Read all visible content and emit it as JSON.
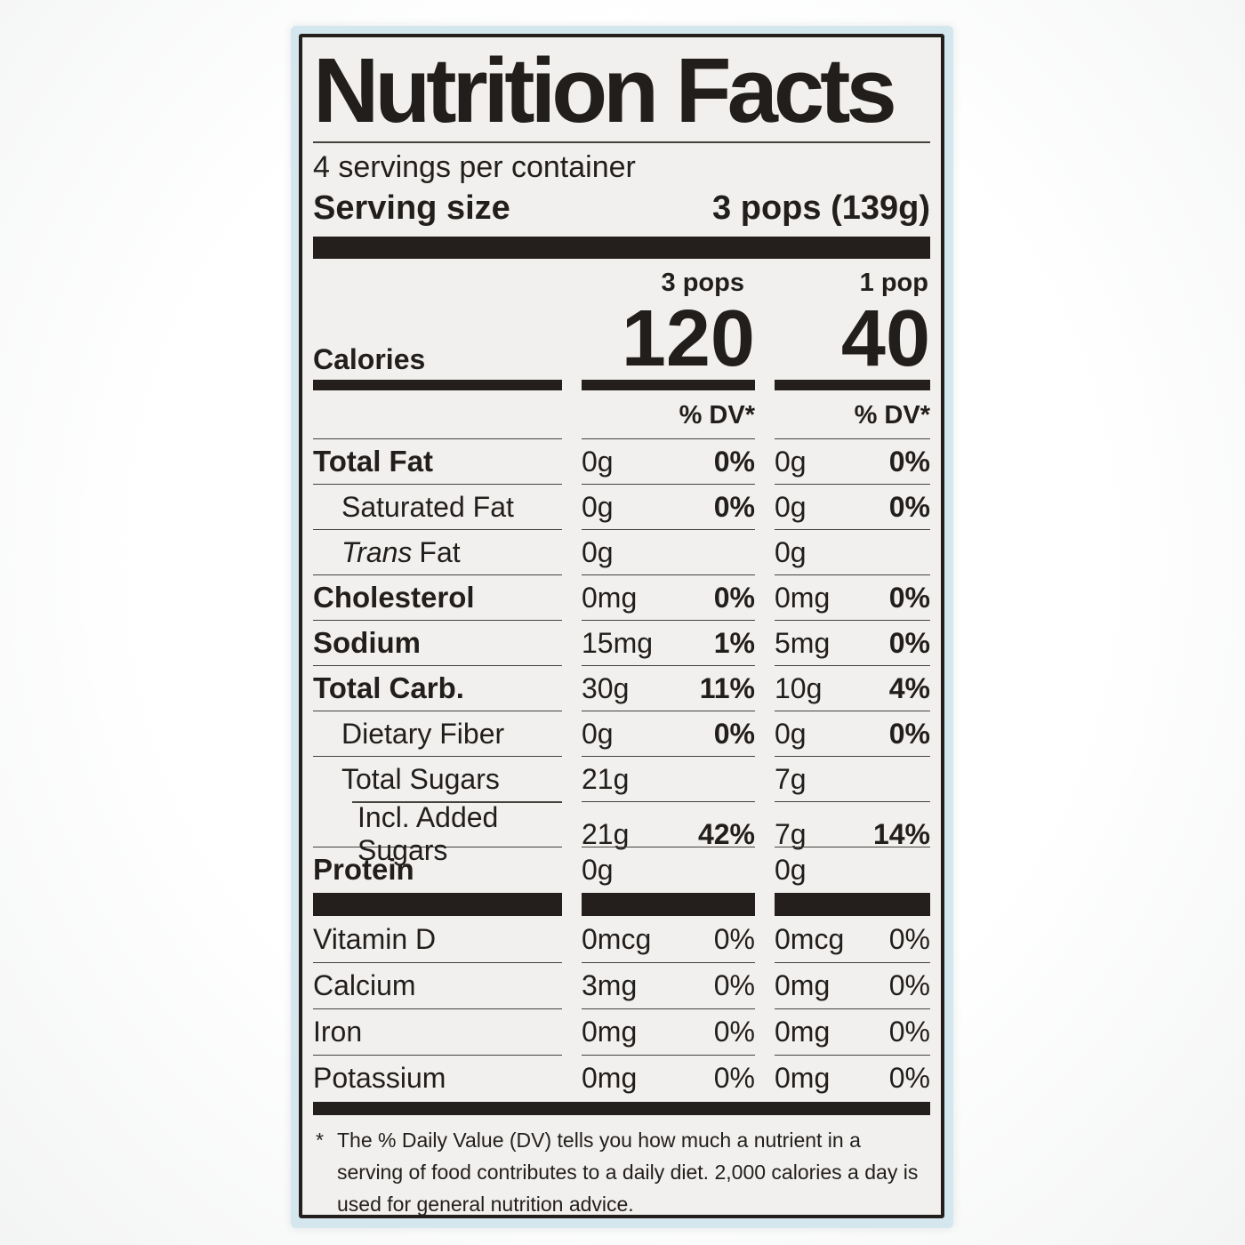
{
  "label": {
    "title": "Nutrition Facts",
    "servings_per_container": "4 servings per container",
    "serving_size": {
      "label": "Serving size",
      "value": "3 pops (139g)"
    },
    "columns": {
      "col1_header": "3 pops",
      "col2_header": "1 pop",
      "dv_header": "% DV*"
    },
    "calories": {
      "label": "Calories",
      "col1_value": "120",
      "col2_value": "40"
    },
    "nutrients": [
      {
        "name": "Total Fat",
        "col1": {
          "amount": "0g",
          "dv": "0%"
        },
        "col2": {
          "amount": "0g",
          "dv": "0%"
        }
      },
      {
        "name": "Saturated Fat",
        "col1": {
          "amount": "0g",
          "dv": "0%"
        },
        "col2": {
          "amount": "0g",
          "dv": "0%"
        }
      },
      {
        "name_italic": "Trans",
        "name": "Fat",
        "col1": {
          "amount": "0g",
          "dv": ""
        },
        "col2": {
          "amount": "0g",
          "dv": ""
        }
      },
      {
        "name": "Cholesterol",
        "col1": {
          "amount": "0mg",
          "dv": "0%"
        },
        "col2": {
          "amount": "0mg",
          "dv": "0%"
        }
      },
      {
        "name": "Sodium",
        "col1": {
          "amount": "15mg",
          "dv": "1%"
        },
        "col2": {
          "amount": "5mg",
          "dv": "0%"
        }
      },
      {
        "name": "Total Carb.",
        "col1": {
          "amount": "30g",
          "dv": "11%"
        },
        "col2": {
          "amount": "10g",
          "dv": "4%"
        }
      },
      {
        "name": "Dietary Fiber",
        "col1": {
          "amount": "0g",
          "dv": "0%"
        },
        "col2": {
          "amount": "0g",
          "dv": "0%"
        }
      },
      {
        "name": "Total Sugars",
        "col1": {
          "amount": "21g",
          "dv": ""
        },
        "col2": {
          "amount": "7g",
          "dv": ""
        }
      },
      {
        "name": "Incl. Added Sugars",
        "col1": {
          "amount": "21g",
          "dv": "42%"
        },
        "col2": {
          "amount": "7g",
          "dv": "14%"
        }
      },
      {
        "name": "Protein",
        "col1": {
          "amount": "0g",
          "dv": ""
        },
        "col2": {
          "amount": "0g",
          "dv": ""
        }
      }
    ],
    "micronutrients": [
      {
        "name": "Vitamin D",
        "col1": {
          "amount": "0mcg",
          "dv": "0%"
        },
        "col2": {
          "amount": "0mcg",
          "dv": "0%"
        }
      },
      {
        "name": "Calcium",
        "col1": {
          "amount": "3mg",
          "dv": "0%"
        },
        "col2": {
          "amount": "0mg",
          "dv": "0%"
        }
      },
      {
        "name": "Iron",
        "col1": {
          "amount": "0mg",
          "dv": "0%"
        },
        "col2": {
          "amount": "0mg",
          "dv": "0%"
        }
      },
      {
        "name": "Potassium",
        "col1": {
          "amount": "0mg",
          "dv": "0%"
        },
        "col2": {
          "amount": "0mg",
          "dv": "0%"
        }
      }
    ],
    "footnote": {
      "marker": "*",
      "text": "The % Daily Value (DV) tells you how much a nutrient in a serving of food contributes to a daily diet. 2,000 calories a day is used for general nutrition advice."
    },
    "colors": {
      "label_background": "#f1f0ee",
      "text": "#221e1b",
      "package_blue": "#d4e7ef",
      "rule": "#45413d"
    }
  }
}
